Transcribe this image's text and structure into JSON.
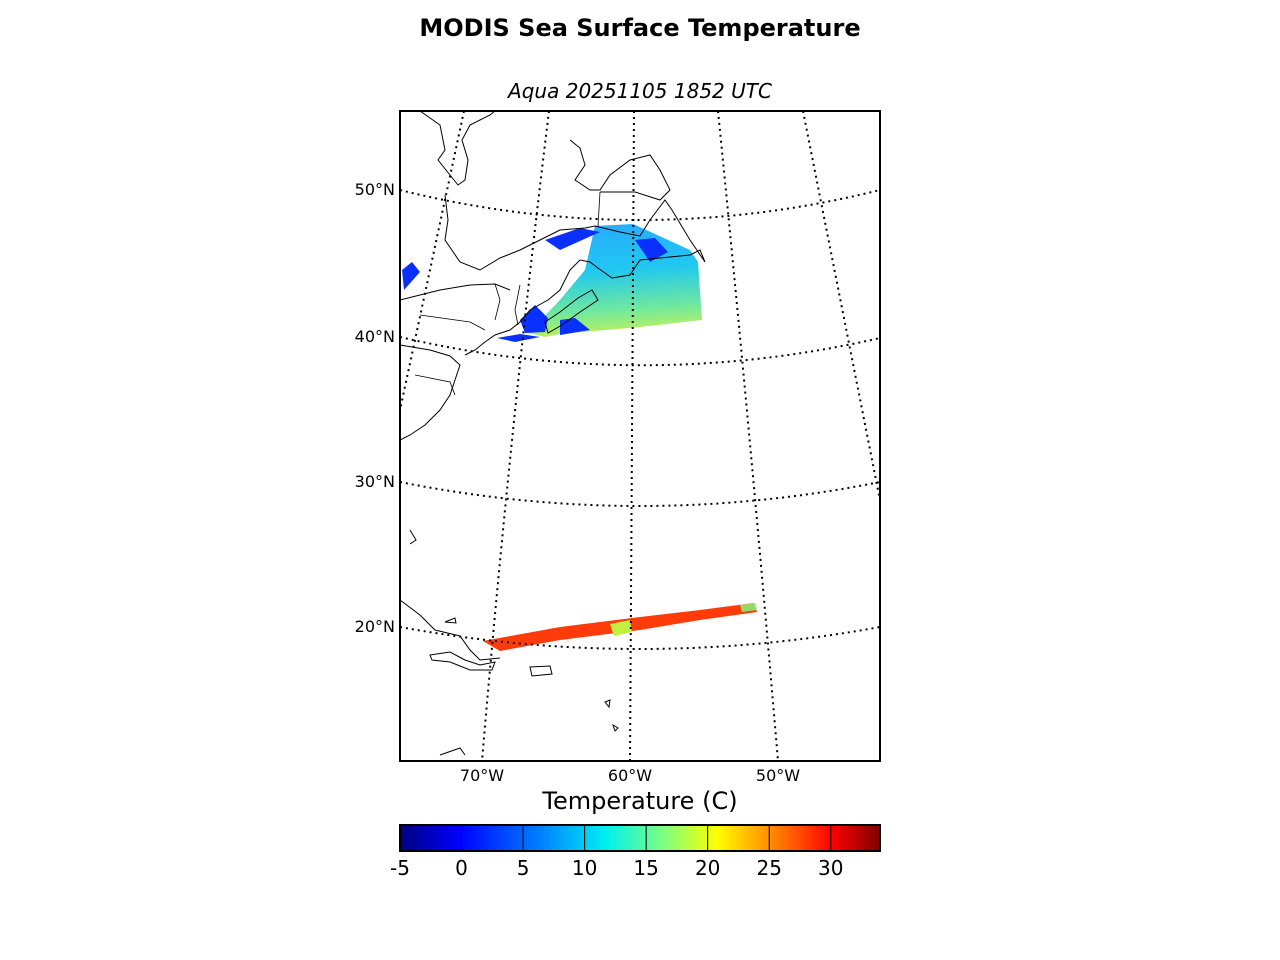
{
  "title": "MODIS Sea Surface Temperature",
  "subtitle": "Aqua 20251105 1852 UTC",
  "map": {
    "projection": "conic",
    "lat_labels": [
      "50°N",
      "40°N",
      "30°N",
      "20°N"
    ],
    "lon_labels": [
      "70°W",
      "60°W",
      "50°W"
    ],
    "extent": {
      "lon": [
        -75.5,
        -43
      ],
      "lat": [
        11,
        55
      ]
    }
  },
  "colorbar": {
    "label": "Temperature (C)",
    "ticks": [
      "-5",
      "0",
      "5",
      "10",
      "15",
      "20",
      "25",
      "30"
    ],
    "range": [
      -5,
      34
    ],
    "colormap": [
      "#00007f",
      "#0000ff",
      "#007fff",
      "#00ffff",
      "#7fff7f",
      "#ffff00",
      "#ff7f00",
      "#ff0000",
      "#7f0000"
    ]
  }
}
